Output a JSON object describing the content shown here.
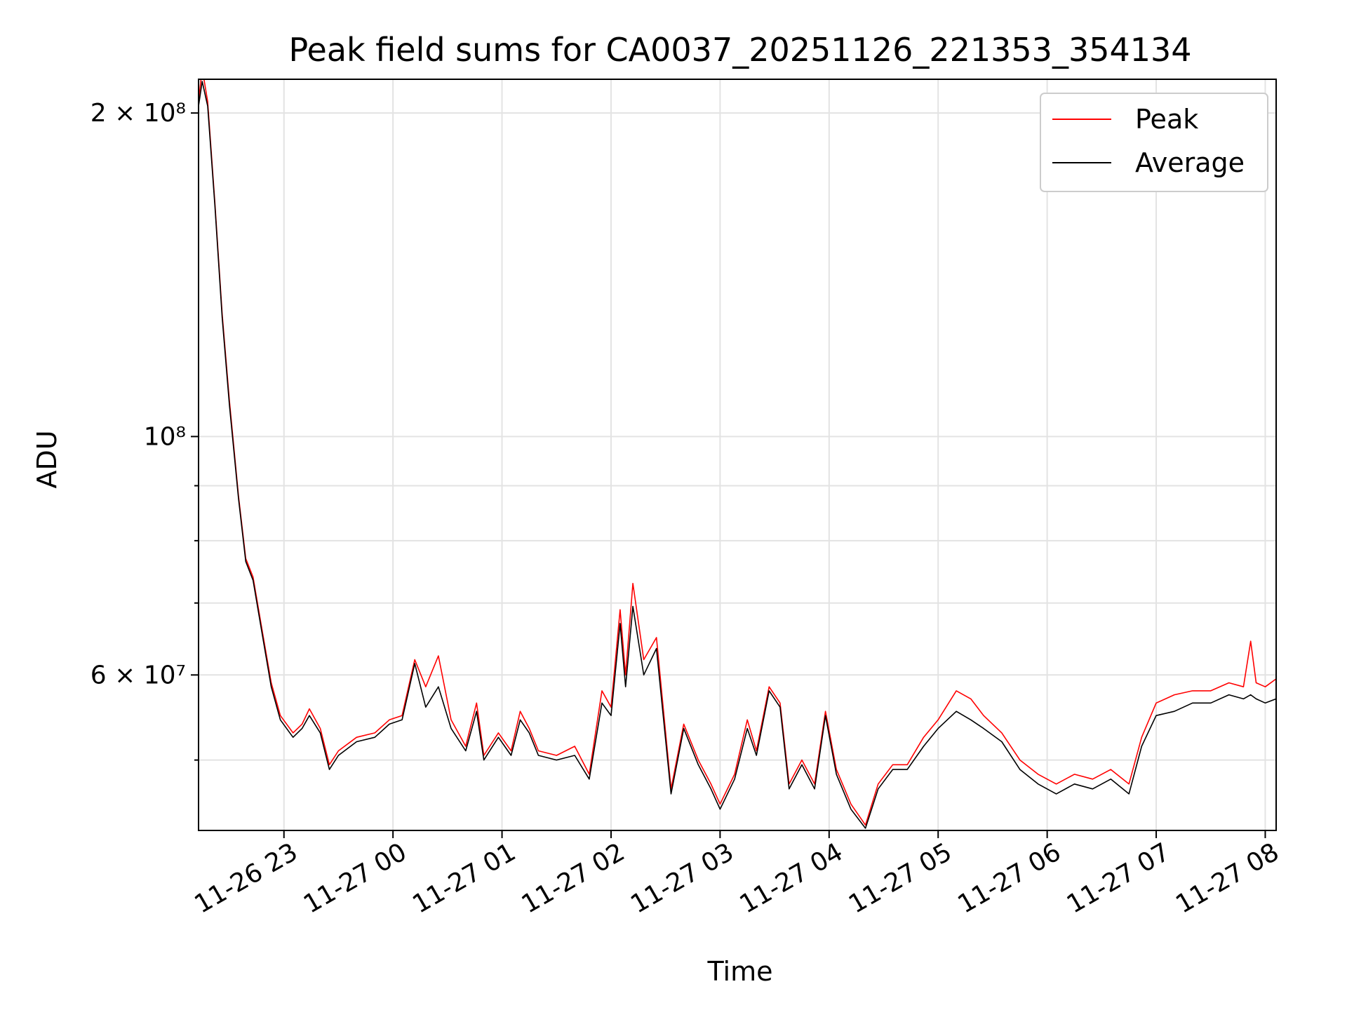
{
  "chart_data": {
    "type": "line",
    "title": "Peak field sums for CA0037_20251126_221353_354134",
    "xlabel": "Time",
    "ylabel": "ADU",
    "xscale": "time",
    "yscale": "log",
    "xlim": [
      "2025-11-26 22:13",
      "2025-11-27 08:06"
    ],
    "ylim": [
      43000000,
      215000000
    ],
    "x_ticks": [
      "11-26 23",
      "11-27 00",
      "11-27 01",
      "11-27 02",
      "11-27 03",
      "11-27 04",
      "11-27 05",
      "11-27 06",
      "11-27 07",
      "11-27 08"
    ],
    "y_ticks": [
      {
        "value": 200000000,
        "label": "2 × 10⁸"
      },
      {
        "value": 100000000,
        "label": "10⁸"
      },
      {
        "value": 60000000,
        "label": "6 × 10⁷"
      }
    ],
    "y_minor_ticks": [
      50000000,
      70000000,
      80000000,
      90000000
    ],
    "grid": true,
    "legend_position": "top-right",
    "series": [
      {
        "name": "Peak",
        "color": "#ff0000",
        "points": [
          [
            "2025-11-26 22:13",
            205000000
          ],
          [
            "2025-11-26 22:15",
            220000000
          ],
          [
            "2025-11-26 22:18",
            205000000
          ],
          [
            "2025-11-26 22:22",
            165000000
          ],
          [
            "2025-11-26 22:26",
            130000000
          ],
          [
            "2025-11-26 22:30",
            108000000
          ],
          [
            "2025-11-26 22:35",
            88000000
          ],
          [
            "2025-11-26 22:39",
            77000000
          ],
          [
            "2025-11-26 22:43",
            74000000
          ],
          [
            "2025-11-26 22:48",
            66000000
          ],
          [
            "2025-11-26 22:53",
            59000000
          ],
          [
            "2025-11-26 22:58",
            55000000
          ],
          [
            "2025-11-26 23:05",
            53000000
          ],
          [
            "2025-11-26 23:10",
            54000000
          ],
          [
            "2025-11-26 23:14",
            55800000
          ],
          [
            "2025-11-26 23:20",
            53500000
          ],
          [
            "2025-11-26 23:25",
            49500000
          ],
          [
            "2025-11-26 23:30",
            51000000
          ],
          [
            "2025-11-26 23:40",
            52500000
          ],
          [
            "2025-11-26 23:50",
            53000000
          ],
          [
            "2025-11-26 23:58",
            54500000
          ],
          [
            "2025-11-27 00:05",
            55000000
          ],
          [
            "2025-11-27 00:12",
            62000000
          ],
          [
            "2025-11-27 00:18",
            58500000
          ],
          [
            "2025-11-27 00:25",
            62500000
          ],
          [
            "2025-11-27 00:32",
            54500000
          ],
          [
            "2025-11-27 00:40",
            51500000
          ],
          [
            "2025-11-27 00:46",
            56500000
          ],
          [
            "2025-11-27 00:50",
            50500000
          ],
          [
            "2025-11-27 00:58",
            53000000
          ],
          [
            "2025-11-27 01:05",
            51000000
          ],
          [
            "2025-11-27 01:10",
            55500000
          ],
          [
            "2025-11-27 01:15",
            53500000
          ],
          [
            "2025-11-27 01:20",
            51000000
          ],
          [
            "2025-11-27 01:30",
            50500000
          ],
          [
            "2025-11-27 01:40",
            51500000
          ],
          [
            "2025-11-27 01:48",
            48500000
          ],
          [
            "2025-11-27 01:55",
            58000000
          ],
          [
            "2025-11-27 02:00",
            56000000
          ],
          [
            "2025-11-27 02:05",
            69000000
          ],
          [
            "2025-11-27 02:08",
            60000000
          ],
          [
            "2025-11-27 02:12",
            73000000
          ],
          [
            "2025-11-27 02:18",
            62000000
          ],
          [
            "2025-11-27 02:25",
            65000000
          ],
          [
            "2025-11-27 02:33",
            47000000
          ],
          [
            "2025-11-27 02:40",
            54000000
          ],
          [
            "2025-11-27 02:48",
            50000000
          ],
          [
            "2025-11-27 02:55",
            47500000
          ],
          [
            "2025-11-27 03:00",
            45500000
          ],
          [
            "2025-11-27 03:08",
            48500000
          ],
          [
            "2025-11-27 03:15",
            54500000
          ],
          [
            "2025-11-27 03:20",
            51000000
          ],
          [
            "2025-11-27 03:27",
            58500000
          ],
          [
            "2025-11-27 03:33",
            56500000
          ],
          [
            "2025-11-27 03:38",
            47500000
          ],
          [
            "2025-11-27 03:45",
            50000000
          ],
          [
            "2025-11-27 03:52",
            47500000
          ],
          [
            "2025-11-27 03:58",
            55500000
          ],
          [
            "2025-11-27 04:04",
            49000000
          ],
          [
            "2025-11-27 04:12",
            45500000
          ],
          [
            "2025-11-27 04:20",
            43500000
          ],
          [
            "2025-11-27 04:27",
            47500000
          ],
          [
            "2025-11-27 04:35",
            49500000
          ],
          [
            "2025-11-27 04:43",
            49500000
          ],
          [
            "2025-11-27 04:52",
            52500000
          ],
          [
            "2025-11-27 05:00",
            54500000
          ],
          [
            "2025-11-27 05:10",
            58000000
          ],
          [
            "2025-11-27 05:18",
            57000000
          ],
          [
            "2025-11-27 05:25",
            55000000
          ],
          [
            "2025-11-27 05:35",
            53000000
          ],
          [
            "2025-11-27 05:45",
            50000000
          ],
          [
            "2025-11-27 05:55",
            48500000
          ],
          [
            "2025-11-27 06:05",
            47500000
          ],
          [
            "2025-11-27 06:15",
            48500000
          ],
          [
            "2025-11-27 06:25",
            48000000
          ],
          [
            "2025-11-27 06:35",
            49000000
          ],
          [
            "2025-11-27 06:45",
            47500000
          ],
          [
            "2025-11-27 06:52",
            52500000
          ],
          [
            "2025-11-27 07:00",
            56500000
          ],
          [
            "2025-11-27 07:10",
            57500000
          ],
          [
            "2025-11-27 07:20",
            58000000
          ],
          [
            "2025-11-27 07:30",
            58000000
          ],
          [
            "2025-11-27 07:40",
            59000000
          ],
          [
            "2025-11-27 07:48",
            58500000
          ],
          [
            "2025-11-27 07:52",
            64500000
          ],
          [
            "2025-11-27 07:55",
            59000000
          ],
          [
            "2025-11-27 08:00",
            58500000
          ],
          [
            "2025-11-27 08:06",
            59500000
          ]
        ]
      },
      {
        "name": "Average",
        "color": "#000000",
        "points": [
          [
            "2025-11-26 22:13",
            203000000
          ],
          [
            "2025-11-26 22:15",
            214000000
          ],
          [
            "2025-11-26 22:18",
            203000000
          ],
          [
            "2025-11-26 22:22",
            164000000
          ],
          [
            "2025-11-26 22:26",
            129000000
          ],
          [
            "2025-11-26 22:30",
            107000000
          ],
          [
            "2025-11-26 22:35",
            87500000
          ],
          [
            "2025-11-26 22:39",
            76500000
          ],
          [
            "2025-11-26 22:43",
            73500000
          ],
          [
            "2025-11-26 22:48",
            65500000
          ],
          [
            "2025-11-26 22:53",
            58500000
          ],
          [
            "2025-11-26 22:58",
            54500000
          ],
          [
            "2025-11-26 23:05",
            52500000
          ],
          [
            "2025-11-26 23:10",
            53500000
          ],
          [
            "2025-11-26 23:14",
            55000000
          ],
          [
            "2025-11-26 23:20",
            53000000
          ],
          [
            "2025-11-26 23:25",
            49000000
          ],
          [
            "2025-11-26 23:30",
            50500000
          ],
          [
            "2025-11-26 23:40",
            52000000
          ],
          [
            "2025-11-26 23:50",
            52500000
          ],
          [
            "2025-11-26 23:58",
            54000000
          ],
          [
            "2025-11-27 00:05",
            54500000
          ],
          [
            "2025-11-27 00:12",
            61500000
          ],
          [
            "2025-11-27 00:18",
            56000000
          ],
          [
            "2025-11-27 00:25",
            58500000
          ],
          [
            "2025-11-27 00:32",
            53500000
          ],
          [
            "2025-11-27 00:40",
            51000000
          ],
          [
            "2025-11-27 00:46",
            55500000
          ],
          [
            "2025-11-27 00:50",
            50000000
          ],
          [
            "2025-11-27 00:58",
            52500000
          ],
          [
            "2025-11-27 01:05",
            50500000
          ],
          [
            "2025-11-27 01:10",
            54500000
          ],
          [
            "2025-11-27 01:15",
            53000000
          ],
          [
            "2025-11-27 01:20",
            50500000
          ],
          [
            "2025-11-27 01:30",
            50000000
          ],
          [
            "2025-11-27 01:40",
            50500000
          ],
          [
            "2025-11-27 01:48",
            48000000
          ],
          [
            "2025-11-27 01:55",
            56500000
          ],
          [
            "2025-11-27 02:00",
            55000000
          ],
          [
            "2025-11-27 02:05",
            67000000
          ],
          [
            "2025-11-27 02:08",
            58500000
          ],
          [
            "2025-11-27 02:12",
            69500000
          ],
          [
            "2025-11-27 02:18",
            60000000
          ],
          [
            "2025-11-27 02:25",
            63500000
          ],
          [
            "2025-11-27 02:33",
            46500000
          ],
          [
            "2025-11-27 02:40",
            53500000
          ],
          [
            "2025-11-27 02:48",
            49500000
          ],
          [
            "2025-11-27 02:55",
            47000000
          ],
          [
            "2025-11-27 03:00",
            45000000
          ],
          [
            "2025-11-27 03:08",
            48000000
          ],
          [
            "2025-11-27 03:15",
            53500000
          ],
          [
            "2025-11-27 03:20",
            50500000
          ],
          [
            "2025-11-27 03:27",
            58000000
          ],
          [
            "2025-11-27 03:33",
            56000000
          ],
          [
            "2025-11-27 03:38",
            47000000
          ],
          [
            "2025-11-27 03:45",
            49500000
          ],
          [
            "2025-11-27 03:52",
            47000000
          ],
          [
            "2025-11-27 03:58",
            55000000
          ],
          [
            "2025-11-27 04:04",
            48500000
          ],
          [
            "2025-11-27 04:12",
            45000000
          ],
          [
            "2025-11-27 04:20",
            43200000
          ],
          [
            "2025-11-27 04:27",
            47000000
          ],
          [
            "2025-11-27 04:35",
            49000000
          ],
          [
            "2025-11-27 04:43",
            49000000
          ],
          [
            "2025-11-27 04:52",
            51500000
          ],
          [
            "2025-11-27 05:00",
            53500000
          ],
          [
            "2025-11-27 05:10",
            55500000
          ],
          [
            "2025-11-27 05:18",
            54500000
          ],
          [
            "2025-11-27 05:25",
            53500000
          ],
          [
            "2025-11-27 05:35",
            52000000
          ],
          [
            "2025-11-27 05:45",
            49000000
          ],
          [
            "2025-11-27 05:55",
            47500000
          ],
          [
            "2025-11-27 06:05",
            46500000
          ],
          [
            "2025-11-27 06:15",
            47500000
          ],
          [
            "2025-11-27 06:25",
            47000000
          ],
          [
            "2025-11-27 06:35",
            48000000
          ],
          [
            "2025-11-27 06:45",
            46500000
          ],
          [
            "2025-11-27 06:52",
            51500000
          ],
          [
            "2025-11-27 07:00",
            55000000
          ],
          [
            "2025-11-27 07:10",
            55500000
          ],
          [
            "2025-11-27 07:20",
            56500000
          ],
          [
            "2025-11-27 07:30",
            56500000
          ],
          [
            "2025-11-27 07:40",
            57500000
          ],
          [
            "2025-11-27 07:48",
            57000000
          ],
          [
            "2025-11-27 07:52",
            57500000
          ],
          [
            "2025-11-27 07:55",
            57000000
          ],
          [
            "2025-11-27 08:00",
            56500000
          ],
          [
            "2025-11-27 08:06",
            57000000
          ]
        ]
      }
    ]
  }
}
